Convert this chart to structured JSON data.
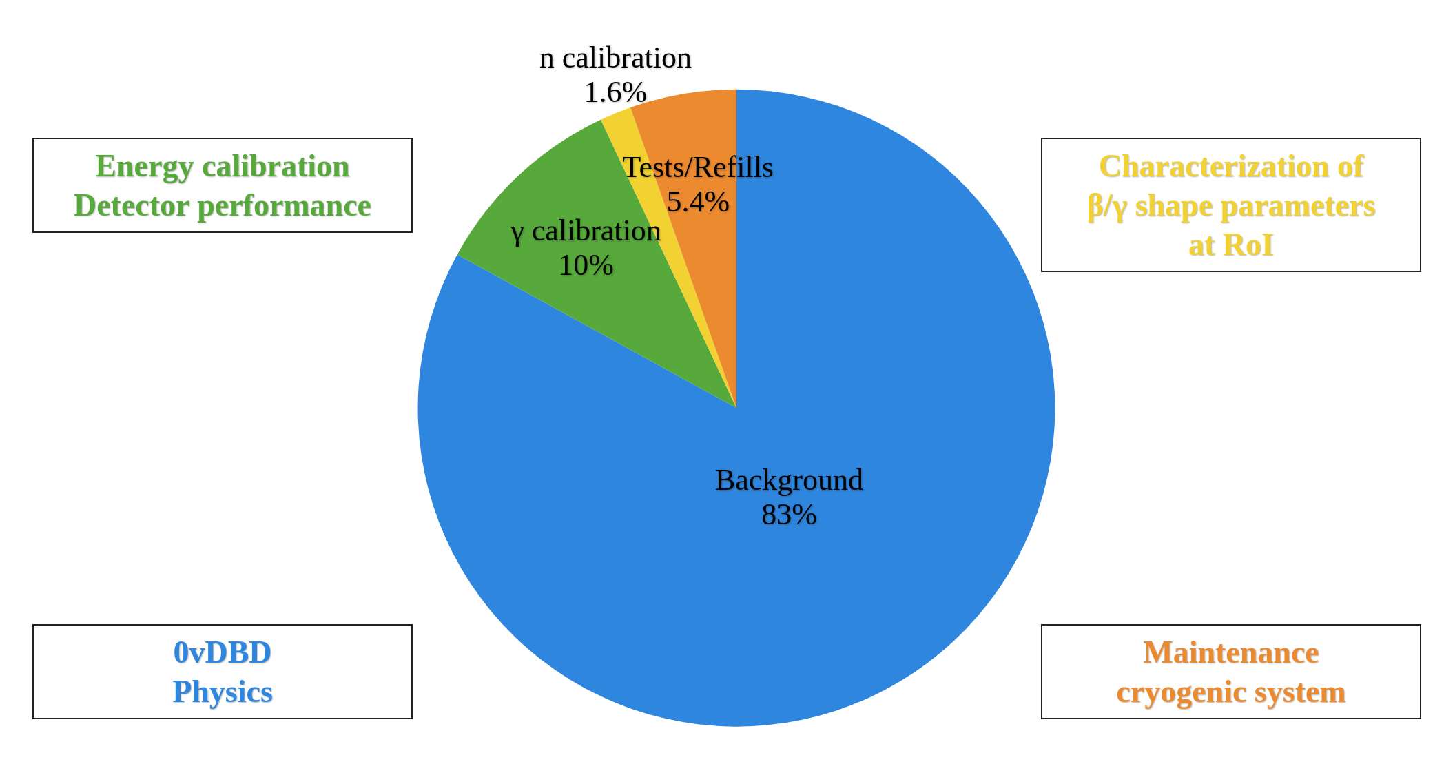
{
  "chart_data": {
    "type": "pie",
    "categories": [
      "Background",
      "γ calibration",
      "n calibration",
      "Tests/Refills"
    ],
    "values": [
      83,
      10,
      1.6,
      5.4
    ],
    "colors": [
      "#2f86de",
      "#56a93a",
      "#f2d232",
      "#ec8a30"
    ],
    "value_labels": [
      "83%",
      "10%",
      "1.6%",
      "5.4%"
    ],
    "annotations": [
      "0vDBD\nPhysics",
      "Energy calibration\nDetector performance",
      "Characterization of\nβ/γ shape parameters\nat RoI",
      "Maintenance\ncryogenic system"
    ]
  }
}
